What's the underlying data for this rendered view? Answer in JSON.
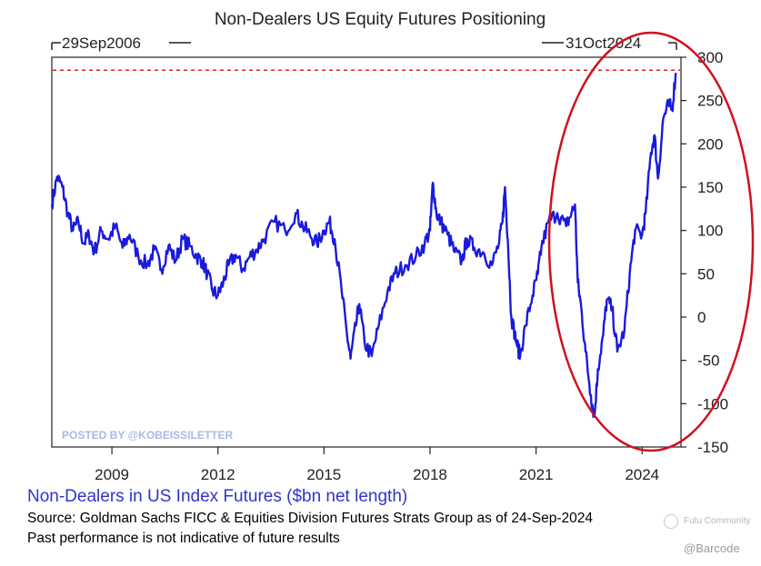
{
  "chart_data": {
    "type": "line",
    "title": "Non-Dealers US Equity Futures Positioning",
    "start_label": "29Sep2006",
    "end_label": "31Oct2024",
    "series_name": "Non-Dealers in US Index Futures ($bn net length)",
    "x_range": [
      2007.3,
      2025.1
    ],
    "ylim": [
      -150,
      300
    ],
    "y_ticks": [
      300,
      250,
      200,
      150,
      100,
      50,
      0,
      -50,
      -100,
      -150
    ],
    "x_ticks": [
      2009,
      2012,
      2015,
      2018,
      2021,
      2024
    ],
    "reference_line": 285,
    "watermark": "POSTED BY @KOBEISSILETTER",
    "line_color": "#1a1add",
    "ref_color": "#e02020",
    "annotation_color": "#d01020",
    "points": [
      [
        2007.3,
        130
      ],
      [
        2007.45,
        162
      ],
      [
        2007.6,
        150
      ],
      [
        2007.75,
        120
      ],
      [
        2007.9,
        100
      ],
      [
        2008.05,
        110
      ],
      [
        2008.2,
        85
      ],
      [
        2008.35,
        95
      ],
      [
        2008.5,
        75
      ],
      [
        2008.7,
        100
      ],
      [
        2008.9,
        90
      ],
      [
        2009.1,
        105
      ],
      [
        2009.3,
        80
      ],
      [
        2009.5,
        95
      ],
      [
        2009.75,
        70
      ],
      [
        2010.0,
        60
      ],
      [
        2010.2,
        78
      ],
      [
        2010.4,
        55
      ],
      [
        2010.6,
        82
      ],
      [
        2010.8,
        65
      ],
      [
        2011.0,
        90
      ],
      [
        2011.2,
        82
      ],
      [
        2011.4,
        70
      ],
      [
        2011.55,
        65
      ],
      [
        2011.7,
        50
      ],
      [
        2011.85,
        30
      ],
      [
        2012.0,
        25
      ],
      [
        2012.15,
        40
      ],
      [
        2012.3,
        60
      ],
      [
        2012.5,
        72
      ],
      [
        2012.7,
        55
      ],
      [
        2012.9,
        70
      ],
      [
        2013.1,
        78
      ],
      [
        2013.3,
        90
      ],
      [
        2013.6,
        110
      ],
      [
        2013.9,
        100
      ],
      [
        2014.2,
        120
      ],
      [
        2014.4,
        105
      ],
      [
        2014.6,
        95
      ],
      [
        2014.8,
        85
      ],
      [
        2015.0,
        100
      ],
      [
        2015.15,
        110
      ],
      [
        2015.3,
        90
      ],
      [
        2015.5,
        30
      ],
      [
        2015.65,
        -20
      ],
      [
        2015.75,
        -48
      ],
      [
        2015.9,
        -10
      ],
      [
        2016.0,
        15
      ],
      [
        2016.15,
        -30
      ],
      [
        2016.35,
        -45
      ],
      [
        2016.55,
        -10
      ],
      [
        2016.8,
        30
      ],
      [
        2017.0,
        50
      ],
      [
        2017.3,
        60
      ],
      [
        2017.6,
        70
      ],
      [
        2017.85,
        85
      ],
      [
        2018.0,
        100
      ],
      [
        2018.08,
        155
      ],
      [
        2018.18,
        120
      ],
      [
        2018.3,
        110
      ],
      [
        2018.5,
        95
      ],
      [
        2018.7,
        75
      ],
      [
        2018.9,
        65
      ],
      [
        2019.05,
        90
      ],
      [
        2019.25,
        80
      ],
      [
        2019.5,
        75
      ],
      [
        2019.75,
        60
      ],
      [
        2019.95,
        85
      ],
      [
        2020.05,
        110
      ],
      [
        2020.12,
        150
      ],
      [
        2020.2,
        90
      ],
      [
        2020.3,
        0
      ],
      [
        2020.45,
        -30
      ],
      [
        2020.55,
        -45
      ],
      [
        2020.7,
        -10
      ],
      [
        2020.9,
        25
      ],
      [
        2021.05,
        50
      ],
      [
        2021.15,
        80
      ],
      [
        2021.35,
        110
      ],
      [
        2021.6,
        120
      ],
      [
        2021.85,
        105
      ],
      [
        2022.0,
        120
      ],
      [
        2022.1,
        130
      ],
      [
        2022.18,
        40
      ],
      [
        2022.28,
        10
      ],
      [
        2022.4,
        -40
      ],
      [
        2022.55,
        -90
      ],
      [
        2022.65,
        -115
      ],
      [
        2022.75,
        -60
      ],
      [
        2022.9,
        -20
      ],
      [
        2023.0,
        20
      ],
      [
        2023.15,
        10
      ],
      [
        2023.3,
        -40
      ],
      [
        2023.5,
        -15
      ],
      [
        2023.65,
        50
      ],
      [
        2023.8,
        100
      ],
      [
        2024.0,
        95
      ],
      [
        2024.1,
        120
      ],
      [
        2024.25,
        190
      ],
      [
        2024.35,
        210
      ],
      [
        2024.45,
        160
      ],
      [
        2024.6,
        230
      ],
      [
        2024.75,
        245
      ],
      [
        2024.85,
        240
      ],
      [
        2024.95,
        282
      ]
    ]
  },
  "footer": {
    "source": "Source: Goldman Sachs FICC & Equities Division Futures Strats Group as of 24-Sep-2024",
    "disclaimer": "Past performance is not indicative of future results"
  },
  "watermarks": {
    "community": "Futu Community",
    "handle": "@Barcode"
  }
}
